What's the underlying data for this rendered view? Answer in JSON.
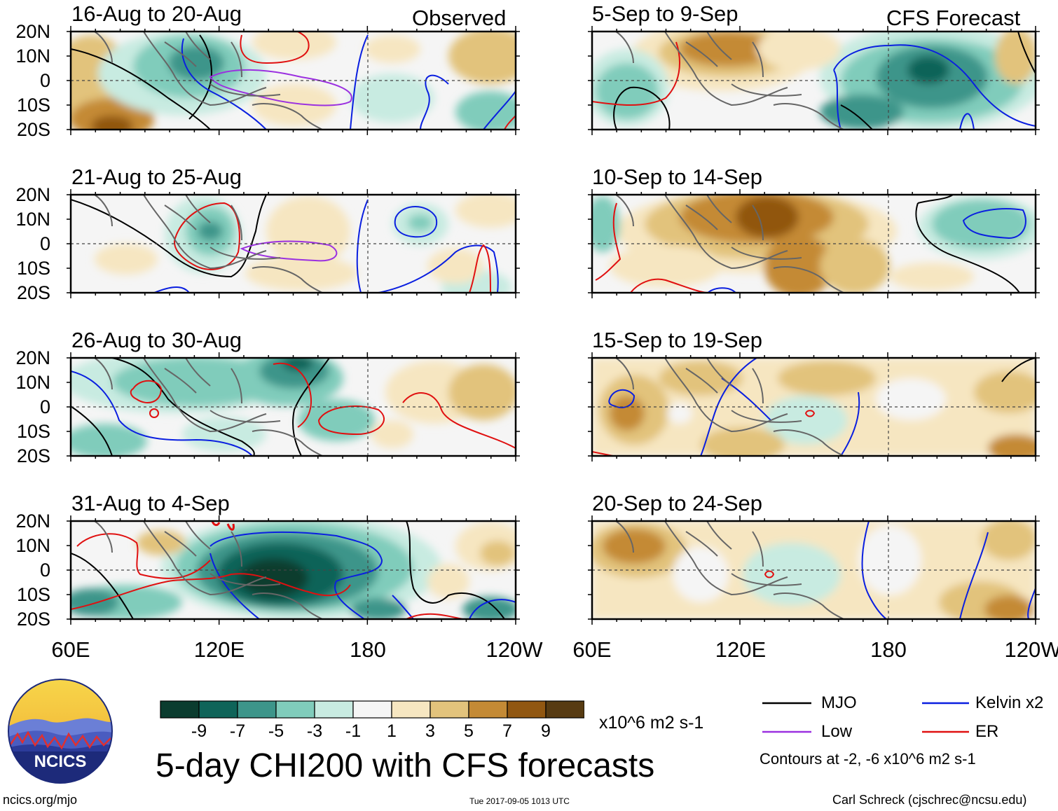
{
  "columns": [
    {
      "header": "Observed",
      "panels": [
        {
          "title": "16-Aug to 20-Aug"
        },
        {
          "title": "21-Aug to 25-Aug"
        },
        {
          "title": "26-Aug to 30-Aug"
        },
        {
          "title": "31-Aug to 4-Sep"
        }
      ]
    },
    {
      "header": "CFS Forecast",
      "panels": [
        {
          "title": "5-Sep to 9-Sep"
        },
        {
          "title": "10-Sep to 14-Sep"
        },
        {
          "title": "15-Sep to 19-Sep"
        },
        {
          "title": "20-Sep to 24-Sep"
        }
      ]
    }
  ],
  "lat_labels": [
    "20N",
    "10N",
    "0",
    "10S",
    "20S"
  ],
  "lon_labels": [
    "60E",
    "120E",
    "180",
    "120W"
  ],
  "colorbar": {
    "colors": [
      "#0b3c2f",
      "#0f6459",
      "#3d958a",
      "#80ccbb",
      "#c8ebe1",
      "#f5f5f5",
      "#f6e6c1",
      "#e2c37c",
      "#c48a35",
      "#915711",
      "#573b12"
    ],
    "tick_labels": [
      "-9",
      "-7",
      "-5",
      "-3",
      "-1",
      "1",
      "3",
      "5",
      "7",
      "9"
    ],
    "units": "x10^6 m2 s-1"
  },
  "main_title": "5-day CHI200 with CFS forecasts",
  "legend": {
    "items": [
      {
        "label": "MJO",
        "color": "#000000"
      },
      {
        "label": "Kelvin x2",
        "color": "#0a1fe0"
      },
      {
        "label": "Low",
        "color": "#9b30e0"
      },
      {
        "label": "ER",
        "color": "#e01010"
      }
    ],
    "note": "Contours at -2, -6 x10^6 m2 s-1"
  },
  "logo": {
    "text": "NCICS"
  },
  "footer": {
    "url": "ncics.org/mjo",
    "timestamp": "Tue 2017-09-05 1013 UTC",
    "author": "Carl Schreck (cjschrec@ncsu.edu)"
  }
}
